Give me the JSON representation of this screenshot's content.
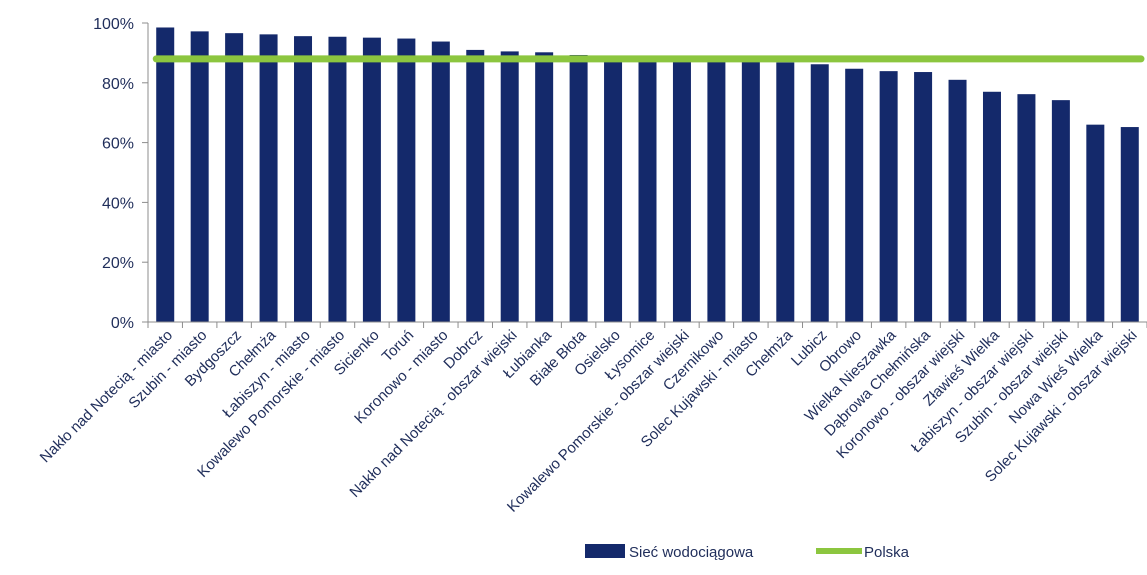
{
  "chart_data": {
    "type": "bar",
    "categories": [
      "Nakło nad Notecią - miasto",
      "Szubin - miasto",
      "Bydgoszcz",
      "Chełmża",
      "Łabiszyn - miasto",
      "Kowalewo Pomorskie - miasto",
      "Sicienko",
      "Toruń",
      "Koronowo - miasto",
      "Dobrcz",
      "Nakło nad Notecią - obszar wiejski",
      "Łubianka",
      "Białe Błota",
      "Osielsko",
      "Łysomice",
      "Kowalewo Pomorskie - obszar wiejski",
      "Czernikowo",
      "Solec Kujawski - miasto",
      "Chełmża",
      "Lubicz",
      "Obrowo",
      "Wielka Nieszawka",
      "Dąbrowa Chełmińska",
      "Koronowo - obszar wiejski",
      "Zławieś Wielka",
      "Łabiszyn - obszar wiejski",
      "Szubin - obszar wiejski",
      "Nowa Wieś Wielka",
      "Solec Kujawski - obszar wiejski"
    ],
    "series": [
      {
        "name": "Sieć wodociągowa",
        "color": "#14296b",
        "values": [
          98.5,
          97.2,
          96.6,
          96.2,
          95.6,
          95.4,
          95.1,
          94.8,
          93.8,
          91.0,
          90.5,
          90.2,
          89.3,
          88.4,
          88.0,
          87.8,
          87.5,
          87.2,
          86.8,
          86.2,
          84.7,
          83.9,
          83.6,
          81.0,
          77.0,
          76.2,
          74.2,
          66.0,
          65.2
        ]
      },
      {
        "name": "Polska",
        "color": "#8cc63f",
        "type": "line",
        "value": 88.0
      }
    ],
    "yticks": [
      "0%",
      "20%",
      "40%",
      "60%",
      "80%",
      "100%"
    ],
    "ylim": [
      0,
      100
    ],
    "grid": false,
    "legend": "bottom"
  }
}
